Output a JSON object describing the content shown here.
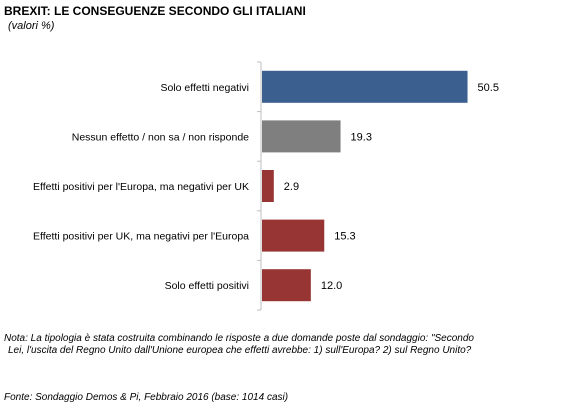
{
  "header": {
    "title": "BREXIT: LE CONSEGUENZE SECONDO GLI ITALIANI",
    "subtitle": "(valori %)"
  },
  "chart_data": {
    "type": "bar",
    "orientation": "horizontal",
    "categories": [
      "Solo effetti negativi",
      "Nessun effetto / non sa / non risponde",
      "Effetti positivi per l'Europa, ma negativi per UK",
      "Effetti positivi per UK, ma negativi per l'Europa",
      "Solo effetti positivi"
    ],
    "values": [
      50.5,
      19.3,
      2.9,
      15.3,
      12.0
    ],
    "value_labels": [
      "50.5",
      "19.3",
      "2.9",
      "15.3",
      "12.0"
    ],
    "colors": [
      "#3b5f8f",
      "#7f7f7f",
      "#973534",
      "#973534",
      "#973534"
    ],
    "title": "BREXIT: LE CONSEGUENZE SECONDO GLI ITALIANI",
    "xlim": [
      0,
      100
    ],
    "grid": false,
    "legend": false
  },
  "footer": {
    "note_line1": "Nota: La tipologia è stata costruita combinando le risposte a due domande poste dal sondaggio: \"Secondo",
    "note_line2": "Lei, l'uscita del Regno Unito dall'Unione europea che effetti avrebbe: 1) sull'Europa? 2) sul Regno Unito?",
    "source": "Fonte: Sondaggio Demos & Pi, Febbraio 2016 (base: 1014 casi)"
  }
}
